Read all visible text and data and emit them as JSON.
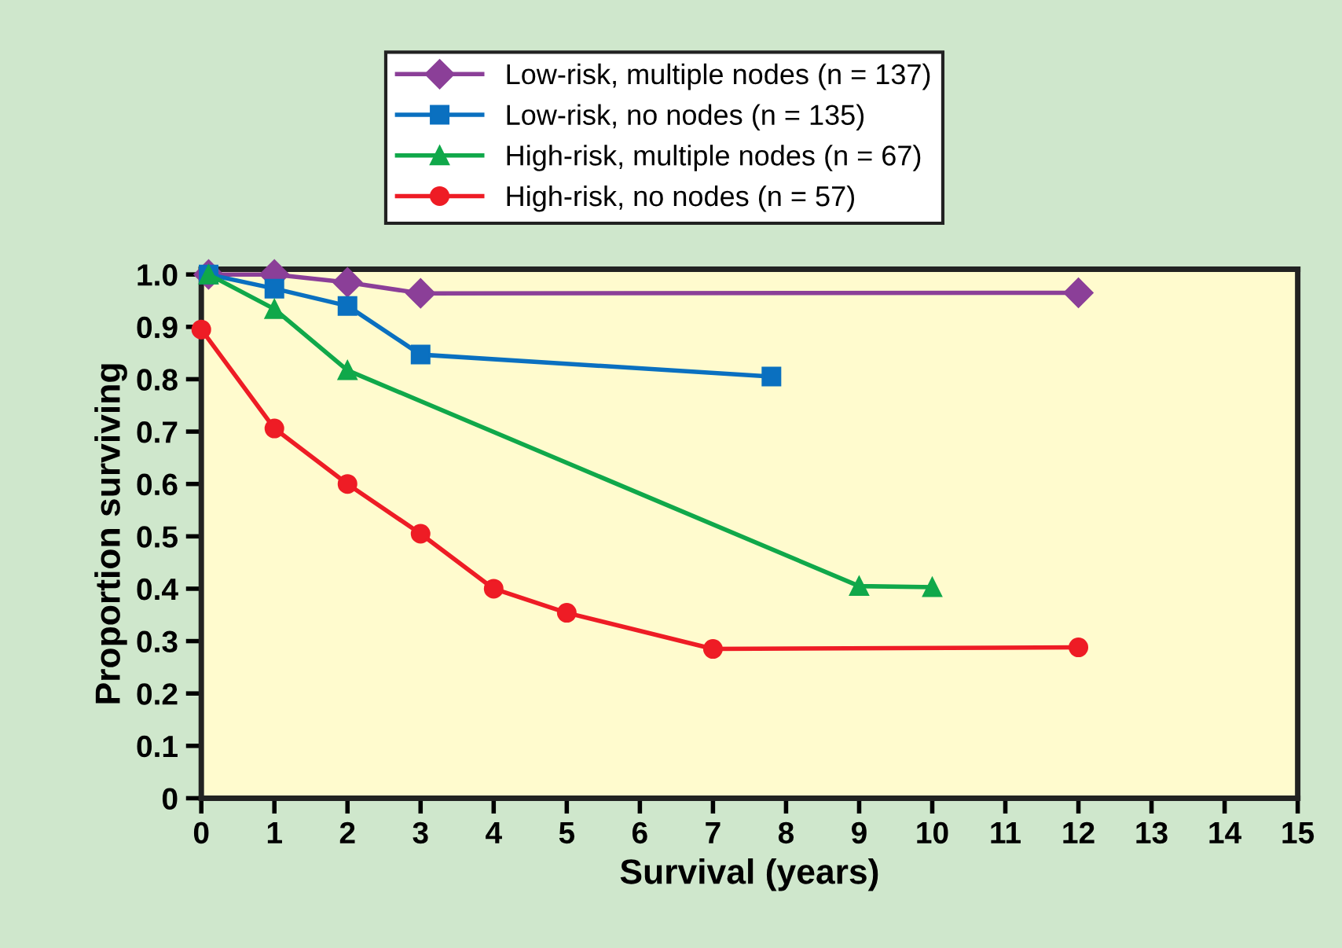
{
  "chart_data": {
    "type": "line",
    "xlabel": "Survival (years)",
    "ylabel": "Proportion surviving",
    "xlim": [
      0,
      15
    ],
    "xticks": [
      0,
      1,
      2,
      3,
      4,
      5,
      6,
      7,
      8,
      9,
      10,
      11,
      12,
      13,
      14,
      15
    ],
    "ylim": [
      0,
      1.01
    ],
    "yticks": [
      {
        "value": 0,
        "label": "0"
      },
      0.1,
      0.2,
      0.3,
      0.4,
      0.5,
      0.6,
      0.7,
      0.8,
      0.9,
      {
        "value": 1,
        "label": "1.0"
      }
    ],
    "grid": false,
    "legend": "top",
    "line_style": "solid",
    "series": [
      {
        "name": "Low-risk, multiple nodes (n = 137)",
        "color": "#8b3f98",
        "marker": "diamond",
        "x": [
          0.1,
          1,
          2,
          3,
          12
        ],
        "values": [
          1.0,
          1.0,
          0.985,
          0.964,
          0.965
        ]
      },
      {
        "name": "Low-risk, no nodes (n = 135)",
        "color": "#0a70c0",
        "marker": "square",
        "x": [
          0.1,
          1,
          2,
          3,
          7.8
        ],
        "values": [
          1.0,
          0.973,
          0.94,
          0.847,
          0.805
        ]
      },
      {
        "name": "High-risk, multiple nodes (n = 67)",
        "color": "#10a84a",
        "marker": "triangle",
        "x": [
          0.1,
          1,
          2,
          9,
          10
        ],
        "values": [
          1.0,
          0.934,
          0.817,
          0.405,
          0.403
        ]
      },
      {
        "name": "High-risk, no nodes (n = 57)",
        "color": "#ee1c25",
        "marker": "circle",
        "x": [
          0,
          1,
          2,
          3,
          4,
          5,
          7,
          12
        ],
        "values": [
          0.895,
          0.706,
          0.6,
          0.505,
          0.4,
          0.354,
          0.285,
          0.288
        ]
      }
    ]
  }
}
